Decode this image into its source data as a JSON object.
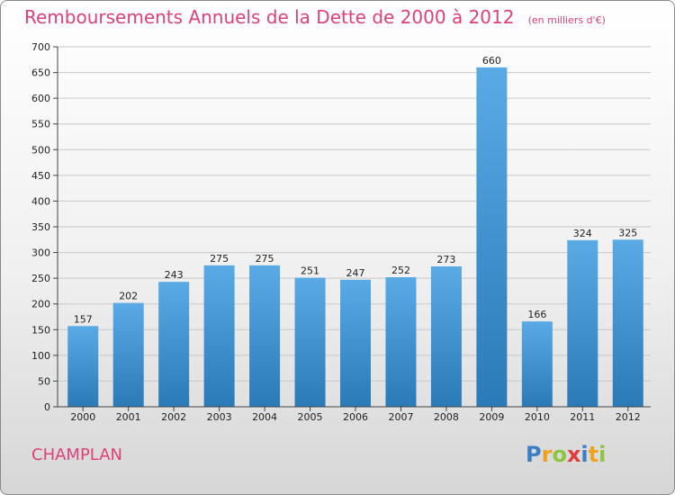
{
  "header": {
    "title": "Remboursements Annuels de la Dette de 2000 à 2012",
    "unit": "(en milliers d'€)"
  },
  "commune": "CHAMPLAN",
  "logo": {
    "text": "Proxiti"
  },
  "colors": {
    "title": "#e0407a",
    "bar_top": "#5aaae6",
    "bar_bottom": "#2a7ab8"
  },
  "chart_data": {
    "type": "bar",
    "title": "Remboursements Annuels de la Dette de 2000 à 2012",
    "subtitle": "(en milliers d'€)",
    "xlabel": "",
    "ylabel": "",
    "categories": [
      "2000",
      "2001",
      "2002",
      "2003",
      "2004",
      "2005",
      "2006",
      "2007",
      "2008",
      "2009",
      "2010",
      "2011",
      "2012"
    ],
    "values": [
      157,
      202,
      243,
      275,
      275,
      251,
      247,
      252,
      273,
      660,
      166,
      324,
      325
    ],
    "ylim": [
      0,
      700
    ],
    "yticks": [
      0,
      50,
      100,
      150,
      200,
      250,
      300,
      350,
      400,
      450,
      500,
      550,
      600,
      650,
      700
    ],
    "grid": true
  }
}
